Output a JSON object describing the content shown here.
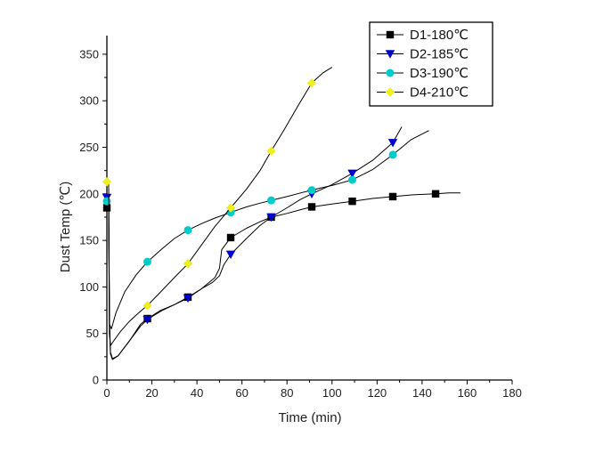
{
  "chart_data": {
    "type": "line",
    "title": "",
    "xlabel": "Time (min)",
    "ylabel": "Dust Temp (℃)",
    "xlim": [
      0,
      180
    ],
    "ylim": [
      0,
      370
    ],
    "xticks": [
      0,
      20,
      40,
      60,
      80,
      100,
      120,
      140,
      160,
      180
    ],
    "yticks": [
      0,
      50,
      100,
      150,
      200,
      250,
      300,
      350
    ],
    "grid": false,
    "legend_position": "top-right",
    "series": [
      {
        "name": "D1-180℃",
        "color": "#000000",
        "marker": "square",
        "points": [
          [
            0,
            185
          ],
          [
            18,
            66
          ],
          [
            36,
            89
          ],
          [
            55,
            153
          ],
          [
            73,
            175
          ],
          [
            91,
            186
          ],
          [
            109,
            192
          ],
          [
            127,
            197
          ],
          [
            146,
            200
          ]
        ],
        "curve": [
          [
            0,
            185
          ],
          [
            0.4,
            188
          ],
          [
            0.8,
            184
          ],
          [
            1.2,
            60
          ],
          [
            1.6,
            28
          ],
          [
            2.5,
            22
          ],
          [
            5,
            26
          ],
          [
            10,
            42
          ],
          [
            15,
            60
          ],
          [
            18,
            66
          ],
          [
            24,
            75
          ],
          [
            30,
            81
          ],
          [
            36,
            89
          ],
          [
            42,
            98
          ],
          [
            48,
            110
          ],
          [
            50,
            120
          ],
          [
            51,
            140
          ],
          [
            55,
            153
          ],
          [
            62,
            163
          ],
          [
            68,
            170
          ],
          [
            73,
            175
          ],
          [
            80,
            179
          ],
          [
            86,
            183
          ],
          [
            91,
            186
          ],
          [
            100,
            189
          ],
          [
            109,
            192
          ],
          [
            118,
            195
          ],
          [
            127,
            197
          ],
          [
            136,
            199
          ],
          [
            146,
            200
          ],
          [
            152,
            201
          ],
          [
            157,
            201
          ]
        ]
      },
      {
        "name": "D2-185℃",
        "color": "#0000cc",
        "marker": "triangle-down",
        "points": [
          [
            0,
            196
          ],
          [
            18,
            65
          ],
          [
            36,
            88
          ],
          [
            55,
            135
          ],
          [
            73,
            175
          ],
          [
            91,
            200
          ],
          [
            109,
            222
          ],
          [
            127,
            255
          ]
        ],
        "curve": [
          [
            0,
            196
          ],
          [
            0.4,
            198
          ],
          [
            0.8,
            194
          ],
          [
            1.2,
            60
          ],
          [
            1.6,
            30
          ],
          [
            2.5,
            23
          ],
          [
            5,
            26
          ],
          [
            10,
            42
          ],
          [
            15,
            58
          ],
          [
            18,
            65
          ],
          [
            24,
            74
          ],
          [
            30,
            81
          ],
          [
            36,
            88
          ],
          [
            42,
            98
          ],
          [
            47,
            105
          ],
          [
            50,
            112
          ],
          [
            52,
            124
          ],
          [
            55,
            135
          ],
          [
            62,
            152
          ],
          [
            68,
            166
          ],
          [
            73,
            175
          ],
          [
            80,
            185
          ],
          [
            86,
            194
          ],
          [
            91,
            200
          ],
          [
            100,
            210
          ],
          [
            109,
            222
          ],
          [
            118,
            236
          ],
          [
            127,
            255
          ],
          [
            131,
            272
          ]
        ]
      },
      {
        "name": "D3-190℃",
        "color": "#00cccc",
        "marker": "circle",
        "points": [
          [
            0,
            192
          ],
          [
            18,
            127
          ],
          [
            36,
            161
          ],
          [
            55,
            180
          ],
          [
            73,
            193
          ],
          [
            91,
            204
          ],
          [
            109,
            215
          ],
          [
            127,
            242
          ]
        ],
        "curve": [
          [
            0,
            192
          ],
          [
            0.4,
            194
          ],
          [
            0.8,
            190
          ],
          [
            1.1,
            60
          ],
          [
            2,
            55
          ],
          [
            4,
            72
          ],
          [
            8,
            95
          ],
          [
            13,
            113
          ],
          [
            18,
            127
          ],
          [
            24,
            140
          ],
          [
            30,
            152
          ],
          [
            36,
            161
          ],
          [
            42,
            168
          ],
          [
            48,
            174
          ],
          [
            55,
            180
          ],
          [
            62,
            186
          ],
          [
            68,
            190
          ],
          [
            73,
            193
          ],
          [
            80,
            197
          ],
          [
            86,
            201
          ],
          [
            91,
            204
          ],
          [
            100,
            209
          ],
          [
            109,
            215
          ],
          [
            118,
            226
          ],
          [
            127,
            242
          ],
          [
            135,
            258
          ],
          [
            143,
            268
          ]
        ]
      },
      {
        "name": "D4-210℃",
        "color": "#eeee22",
        "marker": "diamond",
        "points": [
          [
            0,
            213
          ],
          [
            18,
            80
          ],
          [
            36,
            125
          ],
          [
            55,
            185
          ],
          [
            73,
            246
          ],
          [
            91,
            319
          ]
        ],
        "curve": [
          [
            0,
            213
          ],
          [
            0.4,
            215
          ],
          [
            0.8,
            210
          ],
          [
            1.1,
            50
          ],
          [
            1.6,
            37
          ],
          [
            3,
            42
          ],
          [
            6,
            52
          ],
          [
            10,
            63
          ],
          [
            14,
            72
          ],
          [
            18,
            80
          ],
          [
            24,
            95
          ],
          [
            30,
            110
          ],
          [
            36,
            125
          ],
          [
            42,
            145
          ],
          [
            48,
            165
          ],
          [
            55,
            185
          ],
          [
            62,
            205
          ],
          [
            68,
            225
          ],
          [
            73,
            246
          ],
          [
            79,
            270
          ],
          [
            85,
            295
          ],
          [
            91,
            319
          ],
          [
            96,
            330
          ],
          [
            100,
            336
          ]
        ]
      }
    ]
  }
}
